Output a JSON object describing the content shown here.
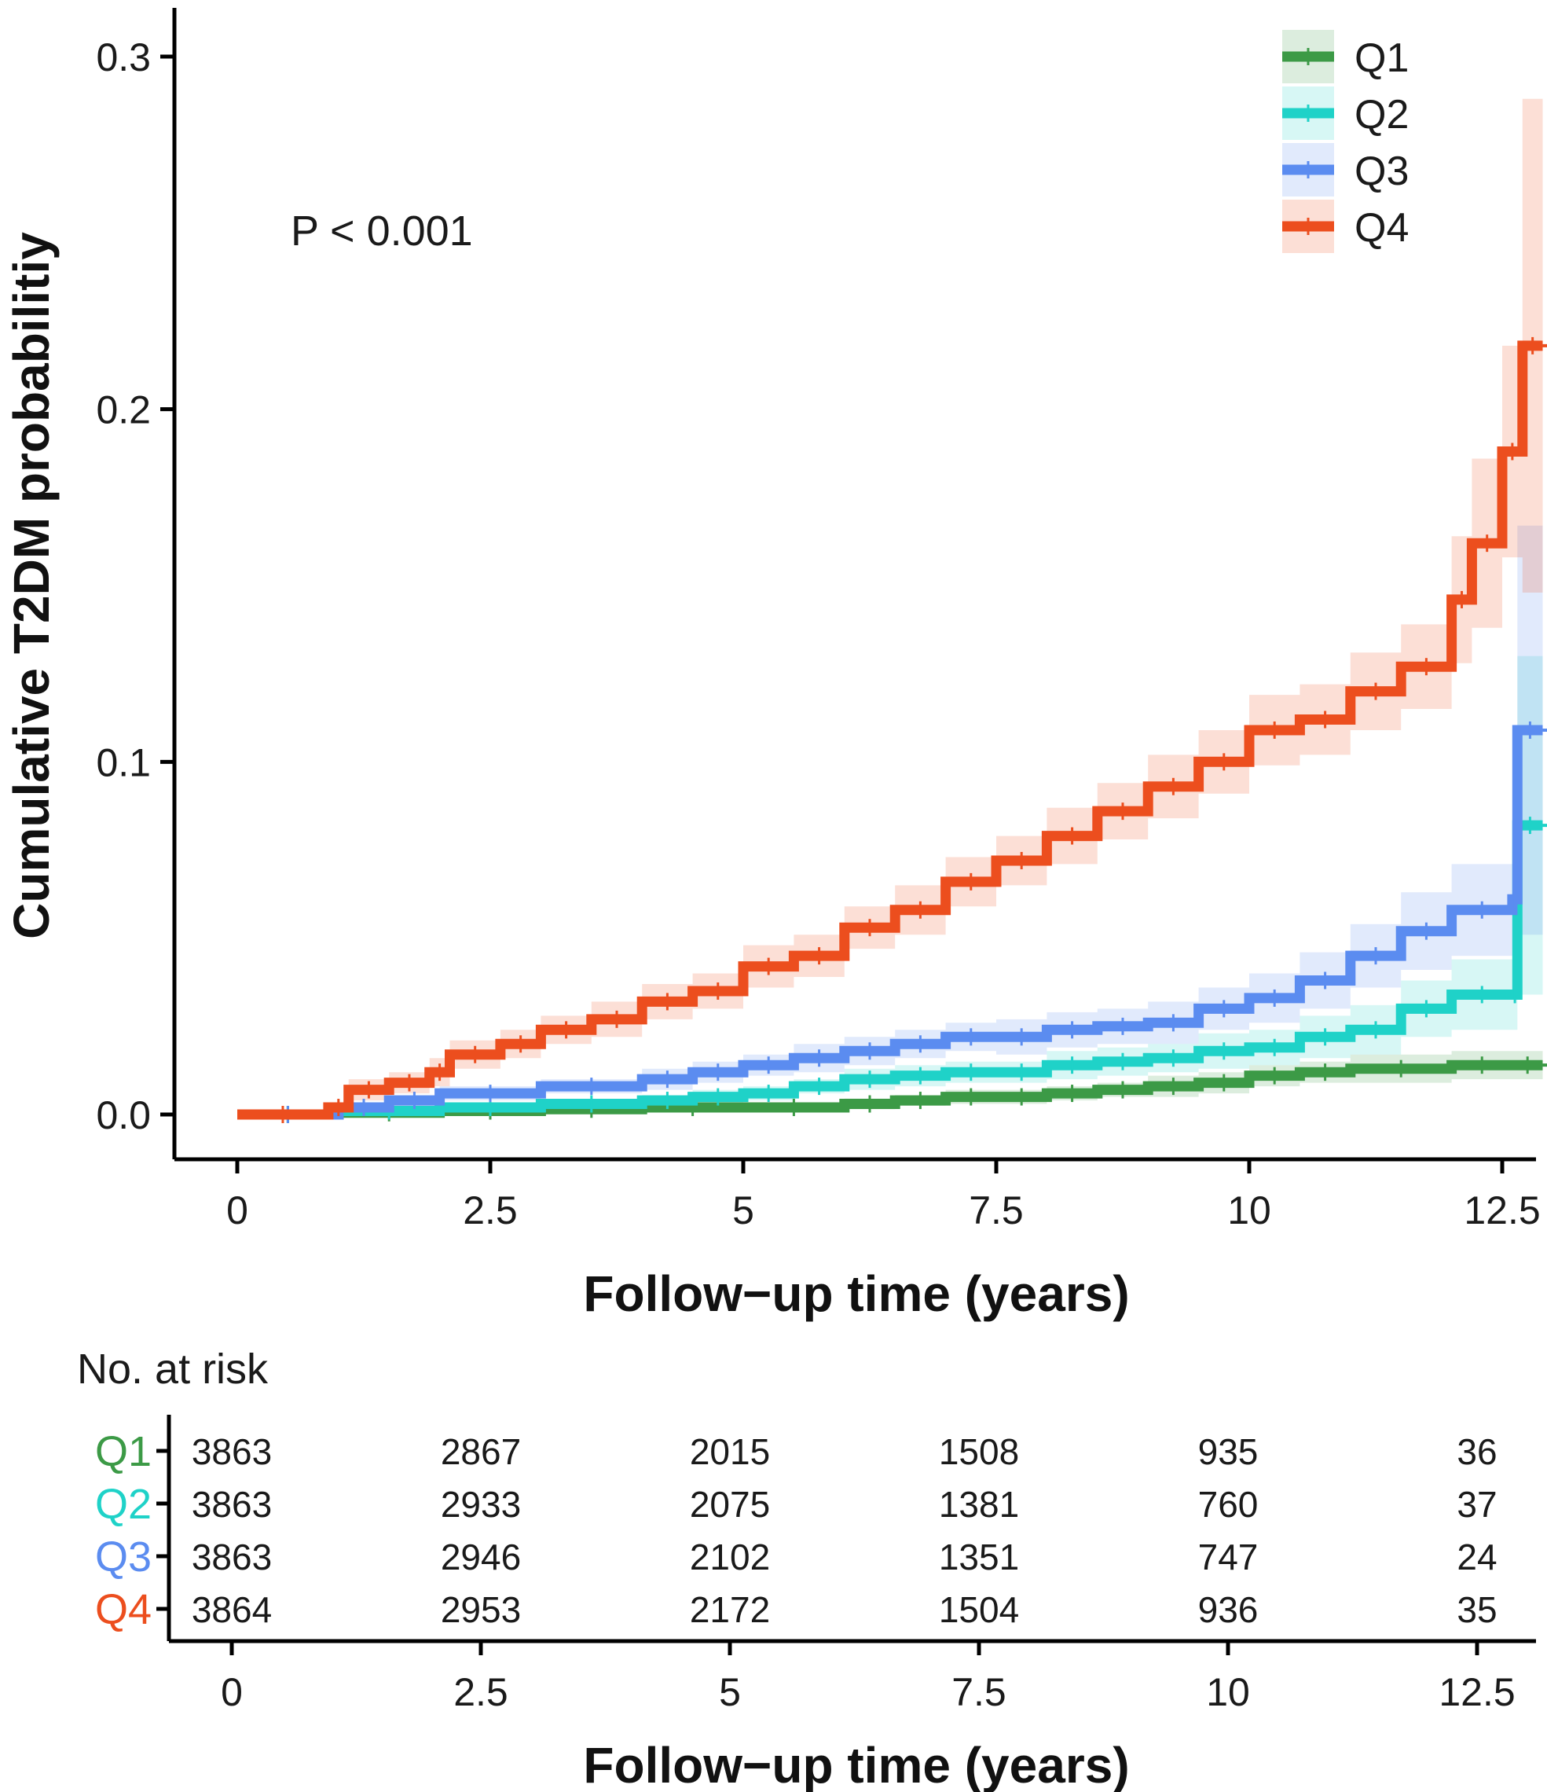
{
  "colors": {
    "Q1": "#3c9a46",
    "Q2": "#1fd2c8",
    "Q3": "#5b8cf0",
    "Q4": "#ec4e1e",
    "axis": "#000000"
  },
  "chart_data": {
    "type": "line",
    "subtype": "kaplan-meier cumulative incidence (step)",
    "xlabel": "Follow−up time (years)",
    "ylabel": "Cumulative T2DM probabilitiy",
    "x_ticks": [
      "0",
      "2.5",
      "5",
      "7.5",
      "10",
      "12.5"
    ],
    "x_tick_values": [
      0,
      2.5,
      5,
      7.5,
      10,
      12.5
    ],
    "y_ticks": [
      "0.0",
      "0.1",
      "0.2",
      "0.3"
    ],
    "y_tick_values": [
      0,
      0.1,
      0.2,
      0.3
    ],
    "xlim": [
      -0.3,
      13.0
    ],
    "ylim": [
      -0.01,
      0.315
    ],
    "annotation": "P < 0.001",
    "legend_position": "top-right",
    "series": [
      {
        "name": "Q1",
        "x": [
          0,
          1.0,
          2.0,
          3.0,
          4.0,
          5.0,
          6.0,
          6.5,
          7.0,
          7.5,
          8.0,
          8.5,
          9.0,
          9.5,
          10.0,
          10.5,
          11.0,
          12.0,
          12.6,
          12.9
        ],
        "y": [
          0,
          0.0005,
          0.001,
          0.0015,
          0.002,
          0.002,
          0.003,
          0.004,
          0.005,
          0.005,
          0.006,
          0.007,
          0.008,
          0.009,
          0.011,
          0.012,
          0.013,
          0.014,
          0.014,
          0.014
        ],
        "ci_half": [
          0,
          0.0005,
          0.001,
          0.001,
          0.001,
          0.001,
          0.0015,
          0.0015,
          0.002,
          0.002,
          0.002,
          0.002,
          0.003,
          0.003,
          0.003,
          0.003,
          0.004,
          0.004,
          0.004,
          0.004
        ]
      },
      {
        "name": "Q2",
        "x": [
          0,
          1.0,
          2.0,
          3.0,
          4.0,
          4.5,
          5.0,
          5.5,
          6.0,
          6.5,
          7.0,
          7.5,
          8.0,
          8.5,
          9.0,
          9.5,
          10.0,
          10.5,
          11.0,
          11.5,
          12.0,
          12.6,
          12.65,
          12.9
        ],
        "y": [
          0,
          0.001,
          0.002,
          0.003,
          0.004,
          0.005,
          0.006,
          0.008,
          0.01,
          0.011,
          0.012,
          0.012,
          0.014,
          0.015,
          0.016,
          0.018,
          0.019,
          0.022,
          0.024,
          0.03,
          0.034,
          0.034,
          0.082,
          0.082
        ],
        "ci_half": [
          0,
          0.001,
          0.001,
          0.001,
          0.0015,
          0.002,
          0.002,
          0.002,
          0.003,
          0.003,
          0.003,
          0.003,
          0.004,
          0.004,
          0.004,
          0.005,
          0.005,
          0.006,
          0.007,
          0.008,
          0.01,
          0.01,
          0.048,
          0.048
        ]
      },
      {
        "name": "Q3",
        "x": [
          0,
          1.0,
          1.5,
          2.0,
          3.0,
          4.0,
          4.5,
          5.0,
          5.5,
          6.0,
          6.5,
          7.0,
          7.5,
          8.0,
          8.5,
          9.0,
          9.5,
          10.0,
          10.5,
          11.0,
          11.5,
          12.0,
          12.6,
          12.65,
          12.9
        ],
        "y": [
          0,
          0.002,
          0.004,
          0.006,
          0.008,
          0.01,
          0.012,
          0.014,
          0.016,
          0.018,
          0.02,
          0.022,
          0.022,
          0.024,
          0.025,
          0.026,
          0.03,
          0.033,
          0.038,
          0.045,
          0.052,
          0.058,
          0.061,
          0.109,
          0.109
        ],
        "ci_half": [
          0,
          0.001,
          0.0015,
          0.002,
          0.002,
          0.003,
          0.003,
          0.003,
          0.004,
          0.004,
          0.004,
          0.004,
          0.005,
          0.005,
          0.005,
          0.006,
          0.006,
          0.007,
          0.008,
          0.009,
          0.011,
          0.013,
          0.014,
          0.058,
          0.058
        ]
      },
      {
        "name": "Q4",
        "x": [
          0,
          0.9,
          1.1,
          1.5,
          1.9,
          2.1,
          2.6,
          3.0,
          3.5,
          4.0,
          4.5,
          5.0,
          5.5,
          6.0,
          6.5,
          7.0,
          7.5,
          8.0,
          8.5,
          9.0,
          9.5,
          10.0,
          10.5,
          11.0,
          11.5,
          12.0,
          12.2,
          12.5,
          12.7,
          12.9
        ],
        "y": [
          0,
          0.002,
          0.007,
          0.009,
          0.012,
          0.017,
          0.02,
          0.024,
          0.027,
          0.032,
          0.035,
          0.042,
          0.045,
          0.053,
          0.058,
          0.066,
          0.072,
          0.079,
          0.086,
          0.093,
          0.1,
          0.109,
          0.112,
          0.12,
          0.127,
          0.146,
          0.162,
          0.188,
          0.218,
          0.218
        ],
        "ci_half": [
          0,
          0.001,
          0.003,
          0.003,
          0.004,
          0.004,
          0.004,
          0.004,
          0.005,
          0.005,
          0.005,
          0.006,
          0.006,
          0.006,
          0.007,
          0.007,
          0.007,
          0.008,
          0.008,
          0.009,
          0.009,
          0.01,
          0.01,
          0.011,
          0.012,
          0.018,
          0.024,
          0.03,
          0.07,
          0.077
        ]
      }
    ]
  },
  "risk_table": {
    "title": "No. at risk",
    "xlabel": "Follow−up time (years)",
    "x_ticks": [
      "0",
      "2.5",
      "5",
      "7.5",
      "10",
      "12.5"
    ],
    "x_tick_values": [
      0,
      2.5,
      5,
      7.5,
      10,
      12.5
    ],
    "rows": [
      {
        "group": "Q1",
        "values": [
          "3863",
          "2867",
          "2015",
          "1508",
          "935",
          "36"
        ]
      },
      {
        "group": "Q2",
        "values": [
          "3863",
          "2933",
          "2075",
          "1381",
          "760",
          "37"
        ]
      },
      {
        "group": "Q3",
        "values": [
          "3863",
          "2946",
          "2102",
          "1351",
          "747",
          "24"
        ]
      },
      {
        "group": "Q4",
        "values": [
          "3864",
          "2953",
          "2172",
          "1504",
          "936",
          "35"
        ]
      }
    ]
  }
}
